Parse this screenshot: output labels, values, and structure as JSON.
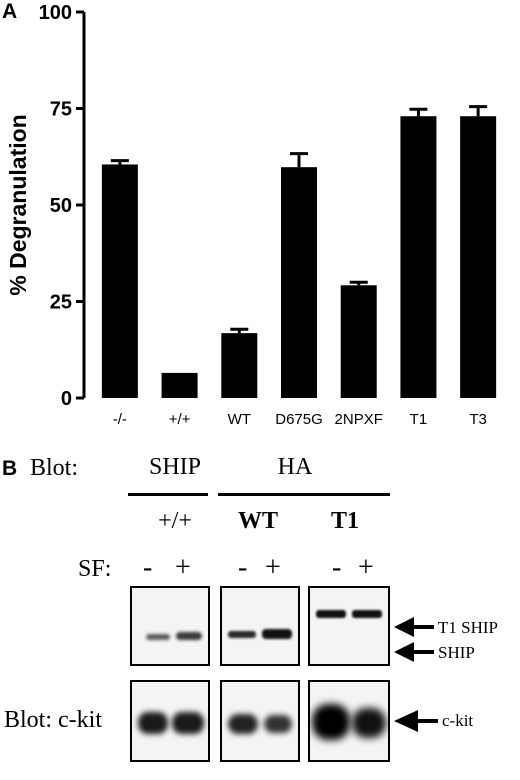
{
  "panel_a": {
    "label": "A",
    "chart_data": {
      "type": "bar",
      "title": "",
      "xlabel": "",
      "ylabel": "% Degranulation",
      "ylim": [
        0,
        100
      ],
      "yticks": [
        "0",
        "25",
        "50",
        "75",
        "100"
      ],
      "categories": [
        "-/-",
        "+/+",
        "WT",
        "D675G",
        "2NPXF",
        "T1",
        "T3"
      ],
      "values": [
        60.5,
        6.5,
        16.8,
        59.8,
        29.2,
        73.0,
        73.0
      ],
      "errors": [
        1.0,
        0.0,
        1.0,
        3.5,
        0.8,
        1.8,
        2.5
      ],
      "bar_color": "#000000",
      "grid": false,
      "legend": "none"
    }
  },
  "panel_b": {
    "label": "B",
    "blot_label_top": "Blot:",
    "groups": [
      {
        "antibody": "SHIP",
        "genotype": "+/+"
      },
      {
        "antibody": "HA",
        "genotype": "WT"
      },
      {
        "antibody": "HA",
        "genotype": "T1"
      }
    ],
    "sf_label": "SF:",
    "sf_minus": "-",
    "sf_plus": "+",
    "blot_label_bottom": "Blot: c-kit",
    "arrows": {
      "t1_ship": "T1 SHIP",
      "ship": "SHIP",
      "ckit": "c-kit"
    }
  }
}
